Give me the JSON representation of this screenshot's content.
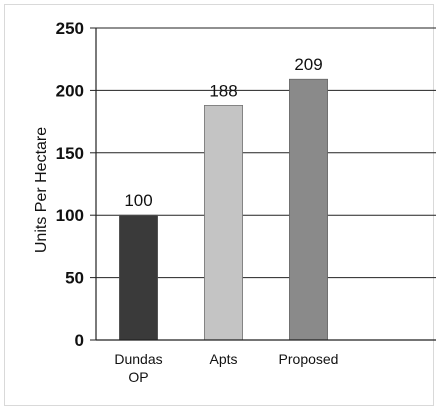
{
  "chart_data": {
    "type": "bar",
    "categories": [
      "Dundas OP",
      "Apts",
      "Proposed",
      ""
    ],
    "category_lines": [
      [
        "Dundas",
        "OP"
      ],
      [
        "Apts"
      ],
      [
        "Proposed"
      ],
      [
        ""
      ]
    ],
    "values": [
      100,
      188,
      209,
      null
    ],
    "data_labels": [
      "100",
      "188",
      "209",
      ""
    ],
    "bar_colors": [
      "#3a3a3a",
      "#c4c4c4",
      "#8a8a8a",
      "#ffffff"
    ],
    "title": "",
    "xlabel": "",
    "ylabel": "Units Per Hectare",
    "ylim": [
      0,
      250
    ],
    "yticks": [
      0,
      50,
      100,
      150,
      200,
      250
    ],
    "grid": true,
    "legend": "none"
  }
}
